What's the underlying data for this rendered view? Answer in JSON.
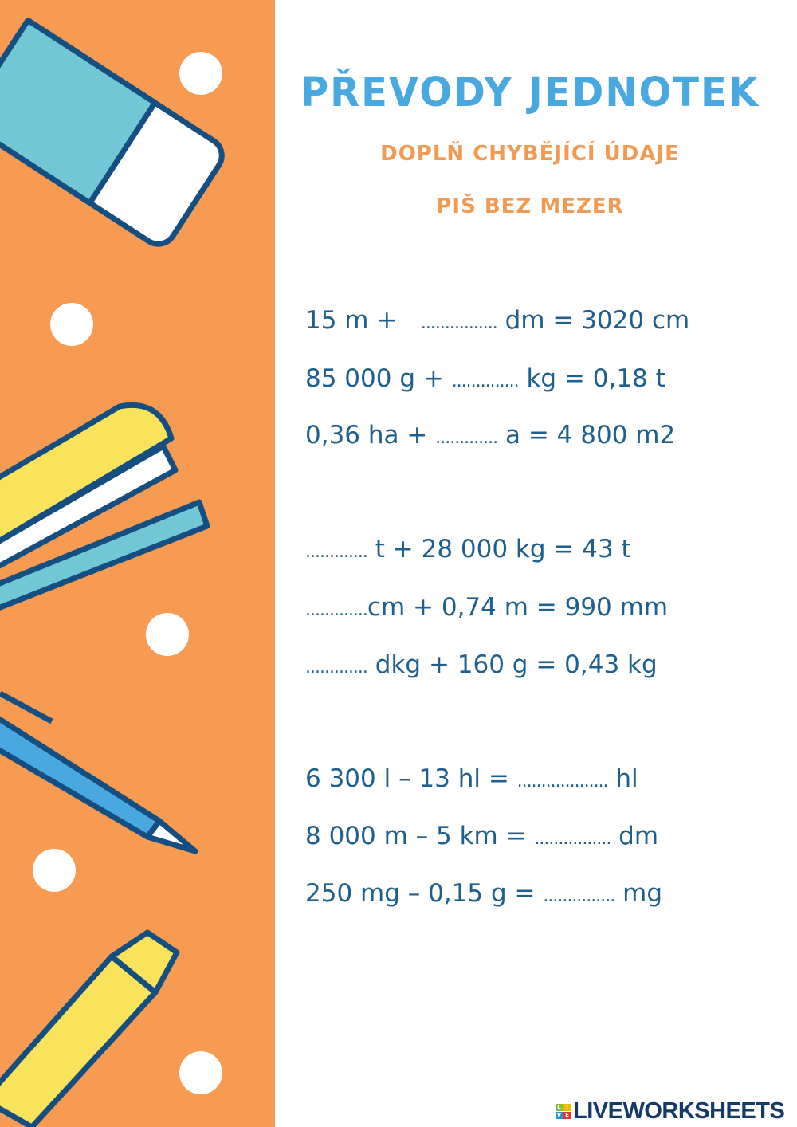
{
  "header": {
    "title": "PŘEVODY JEDNOTEK",
    "subtitle1": "DOPLŇ CHYBĚJÍCÍ ÚDAJE",
    "subtitle2": "PIŠ BEZ MEZER"
  },
  "exercises": [
    {
      "before": "15 m +   ",
      "blank": "................",
      "after": " dm = 3020 cm"
    },
    {
      "before": "85 000 g + ",
      "blank": "..............",
      "after": " kg = 0,18 t"
    },
    {
      "before": "0,36 ha + ",
      "blank": ".............",
      "after": " a = 4 800 m2"
    },
    {
      "before": "",
      "blank": ".............",
      "after": " t + 28 000 kg = 43 t"
    },
    {
      "before": "",
      "blank": ".............",
      "after": "cm + 0,74 m = 990 mm"
    },
    {
      "before": "",
      "blank": ".............",
      "after": " dkg + 160 g = 0,43 kg"
    },
    {
      "before": "6 300 l – 13 hl = ",
      "blank": "...................",
      "after": " hl"
    },
    {
      "before": "8 000 m – 5 km = ",
      "blank": "................",
      "after": " dm"
    },
    {
      "before": "250 mg – 0,15 g = ",
      "blank": "...............",
      "after": " mg"
    }
  ],
  "footer": {
    "logo_text": "LIVEWORKSHEETS",
    "logo_cube": [
      "L",
      "I",
      "V",
      "E"
    ]
  },
  "colors": {
    "side": "#f79a52",
    "title": "#4aa8e0",
    "subtitle": "#f29a52",
    "text": "#1e5f8e"
  }
}
